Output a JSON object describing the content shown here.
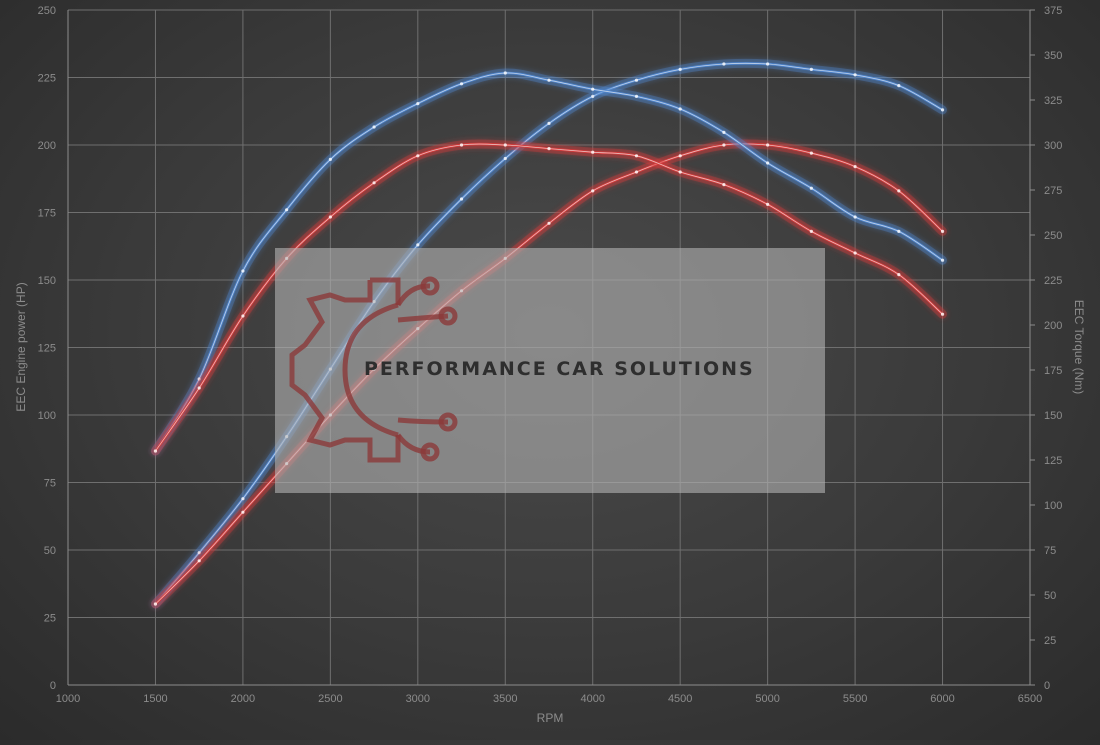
{
  "chart_data": {
    "type": "line",
    "xlabel": "RPM",
    "ylabel_left": "EEC Engine power (HP)",
    "ylabel_right": "EEC Torque (Nm)",
    "xlim": [
      1000,
      6500
    ],
    "ylim_left": [
      0,
      250
    ],
    "ylim_right": [
      0,
      375
    ],
    "x_ticks": [
      1000,
      1500,
      2000,
      2500,
      3000,
      3500,
      4000,
      4500,
      5000,
      5500,
      6000,
      6500
    ],
    "y_ticks_left": [
      0,
      25,
      50,
      75,
      100,
      125,
      150,
      175,
      200,
      225,
      250
    ],
    "y_ticks_right": [
      0,
      25,
      50,
      75,
      100,
      125,
      150,
      175,
      200,
      225,
      250,
      275,
      300,
      325,
      350,
      375
    ],
    "grid": true,
    "series": [
      {
        "color": "#4f86cf",
        "axis": "left",
        "x": [
          1500,
          1750,
          2000,
          2250,
          2500,
          2750,
          3000,
          3250,
          3500,
          3750,
          4000,
          4250,
          4500,
          4750,
          5000,
          5250,
          5500,
          5750,
          6000
        ],
        "y": [
          30,
          49,
          69,
          92,
          117,
          142,
          163,
          180,
          195,
          208,
          218,
          224,
          228,
          230,
          230,
          228,
          226,
          222,
          213
        ]
      },
      {
        "color": "#d63b3b",
        "axis": "left",
        "x": [
          1500,
          1750,
          2000,
          2250,
          2500,
          2750,
          3000,
          3250,
          3500,
          3750,
          4000,
          4250,
          4500,
          4750,
          5000,
          5250,
          5500,
          5750,
          6000
        ],
        "y": [
          30,
          46,
          64,
          82,
          100,
          117,
          132,
          146,
          158,
          171,
          183,
          190,
          196,
          200,
          200,
          197,
          192,
          183,
          168
        ]
      },
      {
        "color": "#4f86cf",
        "axis": "right",
        "x": [
          1500,
          1750,
          2000,
          2250,
          2500,
          2750,
          3000,
          3250,
          3500,
          3750,
          4000,
          4250,
          4500,
          4750,
          5000,
          5250,
          5500,
          5750,
          6000
        ],
        "y": [
          130,
          170,
          230,
          264,
          292,
          310,
          323,
          334,
          340,
          336,
          331,
          327,
          320,
          307,
          290,
          276,
          260,
          252,
          236
        ]
      },
      {
        "color": "#d63b3b",
        "axis": "right",
        "x": [
          1500,
          1750,
          2000,
          2250,
          2500,
          2750,
          3000,
          3250,
          3500,
          3750,
          4000,
          4250,
          4500,
          4750,
          5000,
          5250,
          5500,
          5750,
          6000
        ],
        "y": [
          130,
          165,
          205,
          237,
          260,
          279,
          294,
          300,
          300,
          298,
          296,
          294,
          285,
          278,
          267,
          252,
          240,
          228,
          206
        ]
      }
    ]
  },
  "watermark": {
    "text": "PERFORMANCE CAR SOLUTIONS",
    "icon": "gear-circuit-icon",
    "icon_color": "#8b3a3a"
  }
}
